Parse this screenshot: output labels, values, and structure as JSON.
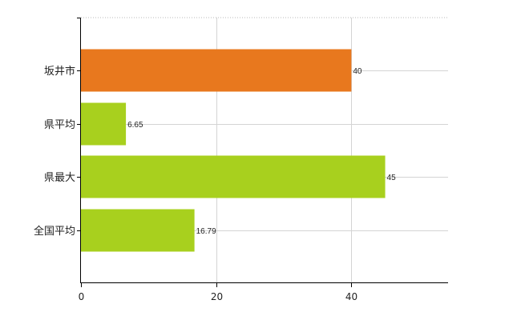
{
  "chart_data": {
    "type": "bar",
    "orientation": "horizontal",
    "categories": [
      "坂井市",
      "県平均",
      "県最大",
      "全国平均"
    ],
    "values": [
      40,
      6.65,
      45,
      16.79
    ],
    "data_labels": [
      "40",
      "6.65",
      "45",
      "16.79"
    ],
    "bar_colors": [
      "#e8781e",
      "#a8d01e",
      "#a8d01e",
      "#a8d01e"
    ],
    "xlim": [
      0,
      54.3
    ],
    "xticks": [
      0,
      20,
      40
    ],
    "xtick_labels": [
      "0",
      "20",
      "40"
    ],
    "grid": true,
    "legend": "none"
  }
}
